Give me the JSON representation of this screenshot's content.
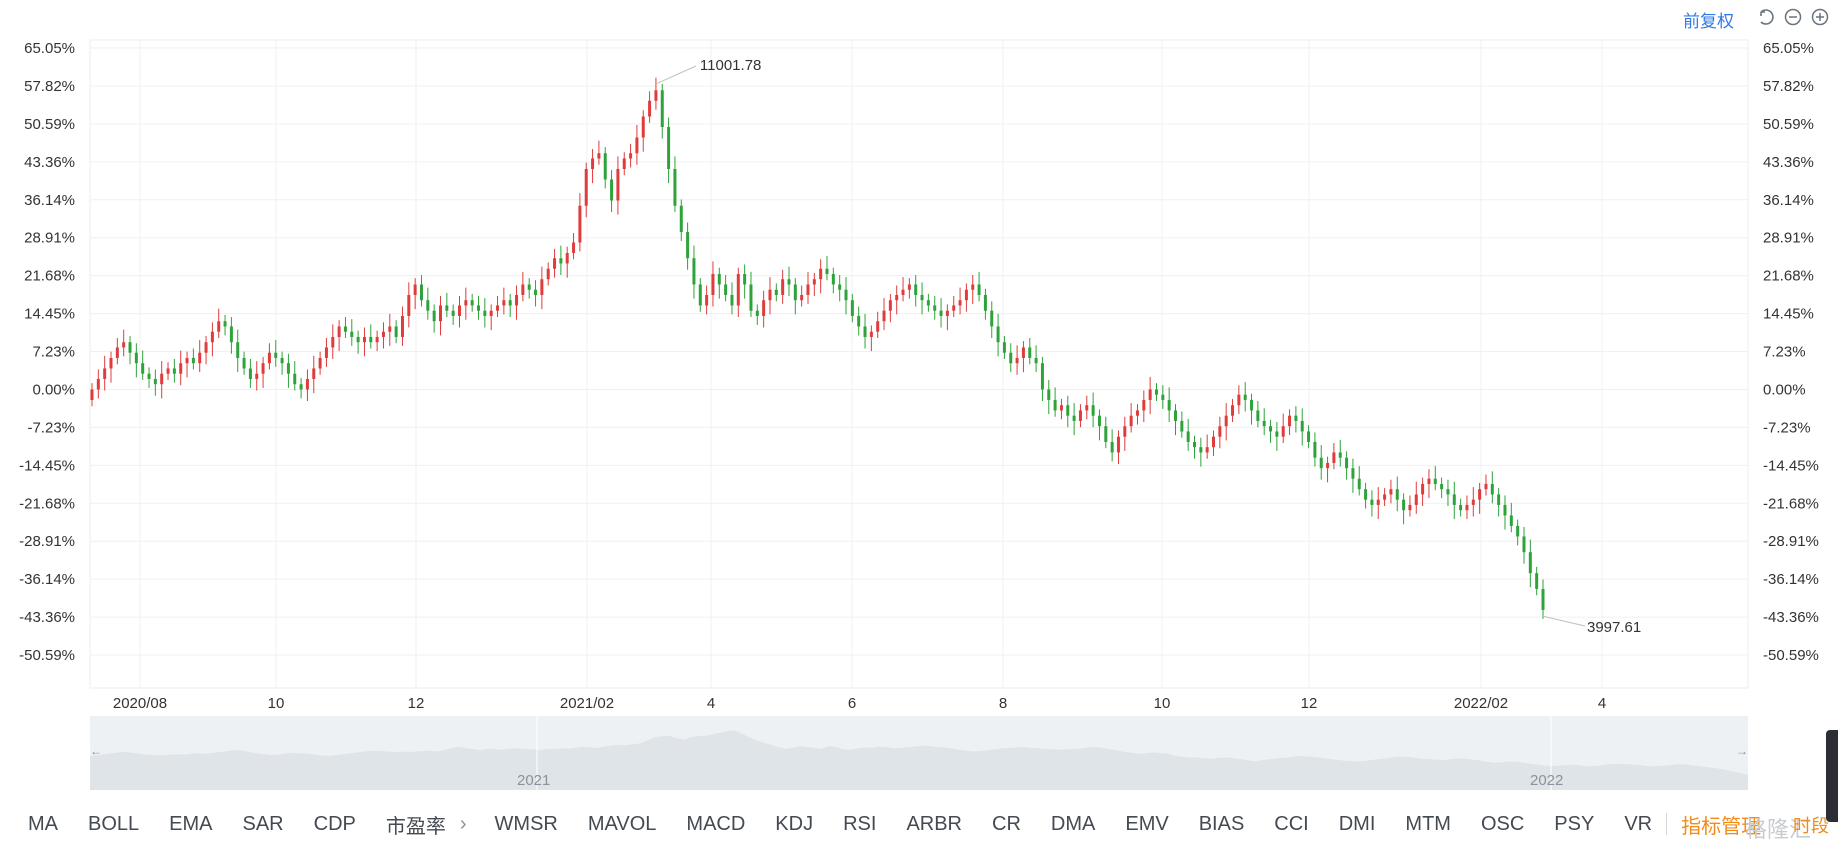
{
  "toolbar": {
    "adjust_label": "前复权",
    "undo_icon": "undo-icon",
    "zoom_out_icon": "zoom-out-icon",
    "zoom_in_icon": "zoom-in-icon",
    "accent": "#2f7ae5"
  },
  "chart_data": {
    "type": "candlestick",
    "y_axis_left": [
      "65.05%",
      "57.82%",
      "50.59%",
      "43.36%",
      "36.14%",
      "28.91%",
      "21.68%",
      "14.45%",
      "7.23%",
      "0.00%",
      "-7.23%",
      "-14.45%",
      "-21.68%",
      "-28.91%",
      "-36.14%",
      "-43.36%",
      "-50.59%"
    ],
    "y_axis_right": [
      "65.05%",
      "57.82%",
      "50.59%",
      "43.36%",
      "36.14%",
      "28.91%",
      "21.68%",
      "14.45%",
      "7.23%",
      "0.00%",
      "-7.23%",
      "-14.45%",
      "-21.68%",
      "-28.91%",
      "-36.14%",
      "-43.36%",
      "-50.59%"
    ],
    "ylim": [
      -50.59,
      65.05
    ],
    "x_ticks": [
      "2020/08",
      "10",
      "12",
      "2021/02",
      "4",
      "6",
      "8",
      "10",
      "12",
      "2022/02",
      "4"
    ],
    "high_annotation": "11001.78",
    "low_annotation": "3997.61",
    "up_color": "#e03c3c",
    "down_color": "#2ea33a",
    "grid": true,
    "series_pct": [
      0,
      2,
      4,
      6,
      8,
      9,
      7,
      5,
      3,
      2,
      1,
      3,
      4,
      3,
      5,
      6,
      5,
      7,
      9,
      11,
      13,
      12,
      9,
      6,
      4,
      2,
      3,
      5,
      7,
      6,
      5,
      3,
      1,
      0,
      2,
      4,
      6,
      8,
      10,
      12,
      11,
      10,
      9,
      10,
      9,
      10,
      11,
      12,
      10,
      14,
      18,
      20,
      17,
      15,
      13,
      16,
      15,
      14,
      16,
      17,
      16,
      15,
      14,
      15,
      16,
      17,
      16,
      18,
      20,
      19,
      18,
      21,
      23,
      25,
      24,
      26,
      28,
      35,
      42,
      44,
      45,
      40,
      36,
      42,
      44,
      45,
      48,
      52,
      55,
      57,
      50,
      42,
      35,
      30,
      25,
      20,
      16,
      18,
      22,
      20,
      18,
      16,
      22,
      20,
      15,
      14,
      17,
      19,
      18,
      21,
      20,
      17,
      18,
      20,
      21,
      23,
      22,
      20,
      19,
      17,
      14,
      12,
      10,
      11,
      13,
      15,
      17,
      18,
      19,
      20,
      18,
      17,
      16,
      15,
      14,
      15,
      16,
      17,
      19,
      20,
      18,
      15,
      12,
      9,
      7,
      5,
      6,
      8,
      6,
      5,
      0,
      -2,
      -4,
      -3,
      -5,
      -6,
      -4,
      -3,
      -5,
      -7,
      -10,
      -12,
      -9,
      -7,
      -5,
      -4,
      -2,
      0,
      -1,
      -2,
      -4,
      -6,
      -8,
      -10,
      -11,
      -12,
      -11,
      -9,
      -7,
      -5,
      -3,
      -1,
      -2,
      -4,
      -6,
      -7,
      -8,
      -9,
      -7,
      -5,
      -6,
      -8,
      -10,
      -13,
      -15,
      -14,
      -12,
      -13,
      -15,
      -17,
      -19,
      -21,
      -22,
      -21,
      -20,
      -19,
      -21,
      -23,
      -22,
      -20,
      -18,
      -17,
      -18,
      -19,
      -20,
      -22,
      -23,
      -22,
      -21,
      -19,
      -18,
      -20,
      -22,
      -24,
      -26,
      -28,
      -31,
      -35,
      -38,
      -42
    ]
  },
  "navigator": {
    "year_left": "2021",
    "year_right": "2022",
    "left_arrow": "←",
    "right_arrow": "→"
  },
  "indicators": {
    "items_a": [
      "MA",
      "BOLL",
      "EMA",
      "SAR",
      "CDP",
      "市盈率"
    ],
    "more_arrow": "›",
    "items_b": [
      "WMSR",
      "MAVOL",
      "MACD",
      "KDJ",
      "RSI",
      "ARBR",
      "CR",
      "DMA",
      "EMV",
      "BIAS",
      "CCI",
      "DMI",
      "MTM",
      "OSC",
      "PSY",
      "VR"
    ],
    "manage_label": "指标管理",
    "manage_color": "#f08c1a"
  },
  "watermark": "格隆汇",
  "period_label": "时段"
}
